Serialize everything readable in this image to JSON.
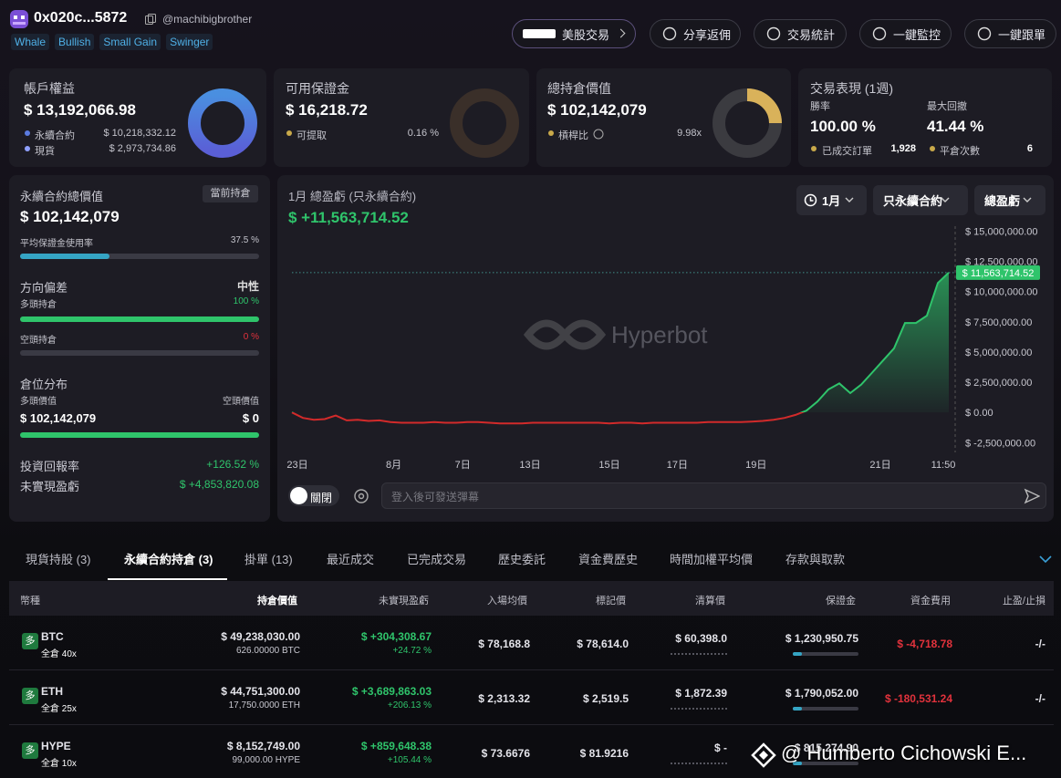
{
  "header": {
    "address": "0x020c...5872",
    "handle": "@machibigbrother",
    "tags": [
      "Whale",
      "Bullish",
      "Small Gain",
      "Swinger"
    ],
    "buttons": [
      "美股交易",
      "分享返佣",
      "交易統計",
      "一鍵監控",
      "一鍵跟單"
    ]
  },
  "summary": {
    "equity": {
      "title": "帳戶權益",
      "value": "$ 13,192,066.98",
      "rows": [
        {
          "label": "永續合約",
          "value": "$ 10,218,332.12"
        },
        {
          "label": "現貨",
          "value": "$ 2,973,734.86"
        }
      ]
    },
    "margin": {
      "title": "可用保證金",
      "value": "$ 16,218.72",
      "rows": [
        {
          "label": "可提取",
          "value": "0.16 %"
        }
      ]
    },
    "position": {
      "title": "總持倉價值",
      "value": "$ 102,142,079",
      "rows": [
        {
          "label": "槓桿比",
          "value": "9.98x"
        }
      ]
    },
    "performance": {
      "title": "交易表現 (1週)",
      "win_rate_label": "勝率",
      "win_rate": "100.00 %",
      "drawdown_label": "最大回撤",
      "drawdown": "41.44 %",
      "orders_label": "已成交訂單",
      "orders": "1,928",
      "closes_label": "平倉次數",
      "closes": "6"
    }
  },
  "perp_panel": {
    "title": "永續合約總價值",
    "badge": "當前持倉",
    "value": "$ 102,142,079",
    "usage_label": "平均保證金使用率",
    "usage": "37.5 %",
    "bias_label": "方向偏差",
    "bias": "中性",
    "long_label": "多頭持倉",
    "long": "100 %",
    "short_label": "空頭持倉",
    "short": "0 %",
    "dist_label": "倉位分布",
    "long_value_label": "多頭價值",
    "short_value_label": "空頭價值",
    "long_value": "$ 102,142,079",
    "short_value": "$ 0",
    "roi_label": "投資回報率",
    "roi": "+126.52 %",
    "upnl_label": "未實現盈虧",
    "upnl": "$ +4,853,820.08"
  },
  "pnl_chart": {
    "type": "line",
    "title": "1月 總盈虧 (只永續合約)",
    "total": "$ +11,563,714.52",
    "filters": [
      "1月",
      "只永續合約",
      "總盈虧"
    ],
    "watermark": "Hyperbot",
    "last_label": "$ 11,563,714.52",
    "toggle": "關閉",
    "input_placeholder": "登入後可發送彈幕",
    "x": [
      0,
      1,
      2,
      3,
      4,
      5,
      6,
      7,
      8,
      9,
      10,
      11,
      12,
      13,
      14,
      15,
      16,
      17,
      18,
      19,
      20,
      21,
      22,
      23,
      24,
      25,
      26,
      27,
      28,
      29,
      30,
      31,
      32,
      33,
      34,
      35,
      36,
      37,
      38,
      39,
      40,
      41,
      42,
      43,
      44,
      45,
      46,
      47,
      48,
      49,
      50,
      51,
      52,
      53,
      54,
      55,
      56,
      57,
      58,
      59,
      60
    ],
    "values": [
      0,
      -450000,
      -600000,
      -550000,
      -250000,
      -650000,
      -600000,
      -700000,
      -650000,
      -800000,
      -850000,
      -850000,
      -850000,
      -800000,
      -850000,
      -850000,
      -800000,
      -800000,
      -850000,
      -900000,
      -900000,
      -900000,
      -850000,
      -850000,
      -850000,
      -850000,
      -850000,
      -850000,
      -850000,
      -900000,
      -850000,
      -850000,
      -900000,
      -850000,
      -850000,
      -850000,
      -850000,
      -850000,
      -800000,
      -800000,
      -800000,
      -800000,
      -750000,
      -700000,
      -600000,
      -450000,
      -200000,
      150000,
      900000,
      1900000,
      2400000,
      1600000,
      2300000,
      3300000,
      4300000,
      5300000,
      7400000,
      7400000,
      8000000,
      10700000,
      11563714.52
    ],
    "xlim": [
      0,
      60
    ],
    "ylim": [
      -3300000,
      15400000
    ],
    "xticks": [
      {
        "value": 0.5,
        "label": "23日"
      },
      {
        "value": 9.3,
        "label": "8月"
      },
      {
        "value": 15.6,
        "label": "7日"
      },
      {
        "value": 21.75,
        "label": "13日"
      },
      {
        "value": 29,
        "label": "15日"
      },
      {
        "value": 35.2,
        "label": "17日"
      },
      {
        "value": 42.4,
        "label": "19日"
      },
      {
        "value": 53.75,
        "label": "21日"
      },
      {
        "value": 59.5,
        "label": "11:50"
      }
    ],
    "yticks": [
      {
        "value": 15000000,
        "label": "$ 15,000,000.00"
      },
      {
        "value": 12500000,
        "label": "$ 12,500,000.00"
      },
      {
        "value": 10000000,
        "label": "$ 10,000,000.00"
      },
      {
        "value": 7500000,
        "label": "$ 7,500,000.00"
      },
      {
        "value": 5000000,
        "label": "$ 5,000,000.00"
      },
      {
        "value": 2500000,
        "label": "$ 2,500,000.00"
      },
      {
        "value": 0,
        "label": "$ 0.00"
      },
      {
        "value": -2500000,
        "label": "$ -2,500,000.00"
      }
    ],
    "colors": {
      "up": "#2fc46b",
      "down": "#d22a2a"
    }
  },
  "tabs": {
    "items": [
      "現貨持股 (3)",
      "永續合約持倉 (3)",
      "掛單 (13)",
      "最近成交",
      "已完成交易",
      "歷史委託",
      "資金費歷史",
      "時間加權平均價",
      "存款與取款"
    ],
    "active": 1
  },
  "table": {
    "columns": [
      "幣種",
      "持倉價值",
      "未實現盈虧",
      "入場均價",
      "標記價",
      "清算價",
      "保證金",
      "資金費用",
      "止盈/止損"
    ],
    "rows": [
      {
        "side": "多",
        "symbol": "BTC",
        "leverage": "全倉 40x",
        "value": "$ 49,238,030.00",
        "size": "626.00000 BTC",
        "pnl": "$ +304,308.67",
        "pnl_pct": "+24.72 %",
        "entry": "$ 78,168.8",
        "mark": "$ 78,614.0",
        "liquidation": "$ 60,398.0",
        "margin": "$ 1,230,950.75",
        "funding": "$ -4,718.78",
        "tpsl": "-/-"
      },
      {
        "side": "多",
        "symbol": "ETH",
        "leverage": "全倉 25x",
        "value": "$ 44,751,300.00",
        "size": "17,750.0000 ETH",
        "pnl": "$ +3,689,863.03",
        "pnl_pct": "+206.13 %",
        "entry": "$ 2,313.32",
        "mark": "$ 2,519.5",
        "liquidation": "$ 1,872.39",
        "margin": "$ 1,790,052.00",
        "funding": "$ -180,531.24",
        "tpsl": "-/-"
      },
      {
        "side": "多",
        "symbol": "HYPE",
        "leverage": "全倉 10x",
        "value": "$ 8,152,749.00",
        "size": "99,000.00 HYPE",
        "pnl": "$ +859,648.38",
        "pnl_pct": "+105.44 %",
        "entry": "$ 73.6676",
        "mark": "$ 81.9216",
        "liquidation": "$ -",
        "margin": "$ 815,274.90"
      }
    ]
  },
  "watermark": "@ Humberto Cichowski E..."
}
